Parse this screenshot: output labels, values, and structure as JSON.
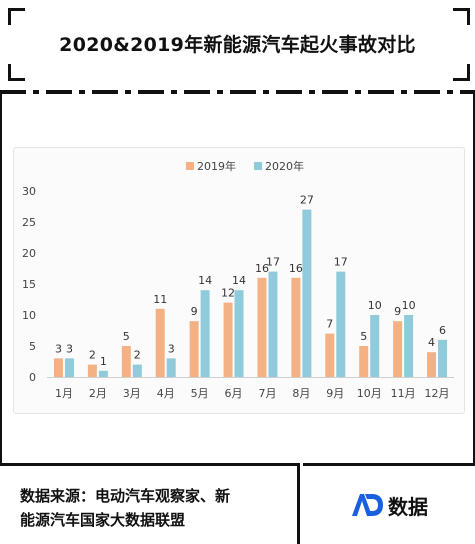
{
  "title": "2020&2019年新能源汽车起火事故对比",
  "source_line1": "数据来源：电动汽车观察家、新",
  "source_line2": "能源汽车国家大数据联盟",
  "logo_text": "数据",
  "chart_data": {
    "type": "bar",
    "categories": [
      "1月",
      "2月",
      "3月",
      "4月",
      "5月",
      "6月",
      "7月",
      "8月",
      "9月",
      "10月",
      "11月",
      "12月"
    ],
    "series": [
      {
        "name": "2019年",
        "color": "#f4b183",
        "values": [
          3,
          2,
          5,
          11,
          9,
          12,
          16,
          16,
          7,
          5,
          9,
          4
        ]
      },
      {
        "name": "2020年",
        "color": "#8fcbdb",
        "values": [
          3,
          1,
          2,
          3,
          14,
          14,
          17,
          27,
          17,
          10,
          10,
          6
        ]
      }
    ],
    "yticks": [
      "0",
      "5",
      "10",
      "15",
      "20",
      "25",
      "30"
    ],
    "ylim": [
      0,
      30
    ],
    "legend": "top-center",
    "grid": false
  }
}
